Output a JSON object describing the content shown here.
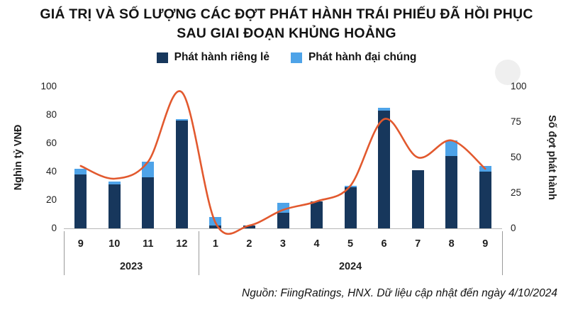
{
  "title": {
    "line1": "GIÁ TRỊ VÀ SỐ LƯỢNG CÁC ĐỢT PHÁT HÀNH TRÁI PHIẾU ĐÃ HỒI PHỤC",
    "line2": "SAU GIAI ĐOẠN KHỦNG HOẢNG"
  },
  "legend": [
    {
      "label": "Phát hành riêng lẻ",
      "color": "#17375c"
    },
    {
      "label": "Phát hành đại chúng",
      "color": "#4ea3e8"
    }
  ],
  "left_axis": {
    "label": "Nghìn tỷ VNĐ",
    "ticks": [
      0,
      20,
      40,
      60,
      80,
      100
    ]
  },
  "right_axis": {
    "label": "Số đợt phát hành",
    "ticks": [
      0,
      25,
      50,
      75,
      100
    ]
  },
  "footer": "Nguồn: FiingRatings, HNX. Dữ liệu cập nhật đến ngày 4/10/2024",
  "chart_data": {
    "type": "bar",
    "subtype": "stacked-bars-with-line-overlay",
    "categories": [
      "9",
      "10",
      "11",
      "12",
      "1",
      "2",
      "3",
      "4",
      "5",
      "6",
      "7",
      "8",
      "9"
    ],
    "year_groups": [
      {
        "label": "2023",
        "span": 4
      },
      {
        "label": "2024",
        "span": 9
      }
    ],
    "series": [
      {
        "name": "Phát hành riêng lẻ",
        "type": "bar",
        "axis": "left",
        "color": "#17375c",
        "values": [
          38,
          31,
          36,
          76,
          2,
          2,
          11,
          19,
          29,
          83,
          41,
          51,
          40
        ]
      },
      {
        "name": "Phát hành đại chúng",
        "type": "bar",
        "axis": "left",
        "stacked_on": "Phát hành riêng lẻ",
        "color": "#4ea3e8",
        "values": [
          4,
          2,
          11,
          1,
          6,
          0,
          7,
          0,
          1,
          2,
          0,
          11,
          4
        ]
      },
      {
        "name": "Số đợt phát hành",
        "type": "line",
        "axis": "right",
        "color": "#e2592e",
        "values": [
          44,
          35,
          47,
          96,
          4,
          2,
          13,
          19,
          30,
          77,
          50,
          62,
          42
        ]
      }
    ],
    "ylabel_left": "Nghìn tỷ VNĐ",
    "ylabel_right": "Số đợt phát hành",
    "left_ylim": [
      0,
      100
    ],
    "right_ylim": [
      0,
      100
    ],
    "grid": false,
    "legend_position": "top-center"
  }
}
